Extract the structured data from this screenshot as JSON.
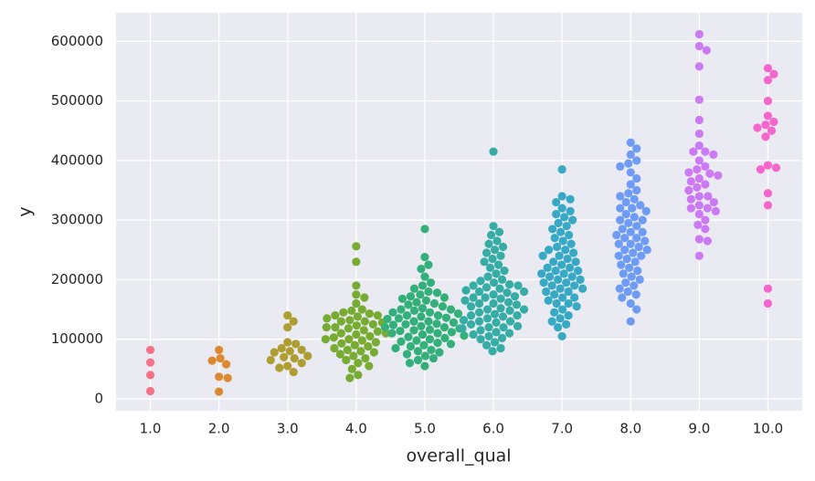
{
  "chart_data": {
    "type": "swarm",
    "xlabel": "overall_qual",
    "ylabel": "y",
    "categories": [
      "1.0",
      "2.0",
      "3.0",
      "4.0",
      "5.0",
      "6.0",
      "7.0",
      "8.0",
      "9.0",
      "10.0"
    ],
    "colors": [
      "#f77189",
      "#dc8932",
      "#ae9d31",
      "#77ab31",
      "#33b07a",
      "#36ada4",
      "#38a9c5",
      "#6e9bf4",
      "#cc7af4",
      "#f565cc"
    ],
    "values": [
      [
        82000,
        61000,
        40000,
        13000
      ],
      [
        82000,
        68000,
        64000,
        58000,
        37000,
        35000,
        12000
      ],
      [
        140000,
        130000,
        120000,
        95000,
        92000,
        85000,
        82000,
        80000,
        78000,
        72000,
        70000,
        68000,
        65000,
        60000,
        55000,
        52000,
        45000
      ],
      [
        256000,
        230000,
        190000,
        175000,
        170000,
        160000,
        150000,
        148000,
        145000,
        143000,
        140000,
        138000,
        135000,
        132000,
        130000,
        128000,
        125000,
        123000,
        120000,
        118000,
        115000,
        113000,
        110000,
        108000,
        105000,
        103000,
        100000,
        98000,
        95000,
        93000,
        90000,
        88000,
        85000,
        82000,
        80000,
        78000,
        75000,
        72000,
        68000,
        65000,
        60000,
        55000,
        50000,
        40000,
        35000,
        120000,
        110000,
        100000,
        130000,
        140000
      ],
      [
        285000,
        238000,
        225000,
        218000,
        205000,
        195000,
        190000,
        185000,
        180000,
        178000,
        175000,
        172000,
        170000,
        168000,
        165000,
        162000,
        160000,
        158000,
        155000,
        152000,
        150000,
        148000,
        145000,
        143000,
        140000,
        138000,
        136000,
        134000,
        132000,
        130000,
        128000,
        126000,
        124000,
        122000,
        120000,
        118000,
        116000,
        114000,
        112000,
        110000,
        108000,
        106000,
        104000,
        102000,
        100000,
        98000,
        96000,
        94000,
        92000,
        90000,
        88000,
        85000,
        82000,
        80000,
        78000,
        75000,
        72000,
        68000,
        65000,
        60000,
        55000,
        140000,
        130000,
        120000,
        110000,
        150000,
        125000,
        135000,
        115000,
        145000
      ],
      [
        415000,
        290000,
        280000,
        275000,
        265000,
        260000,
        255000,
        250000,
        245000,
        240000,
        235000,
        230000,
        225000,
        220000,
        215000,
        210000,
        205000,
        200000,
        198000,
        195000,
        192000,
        190000,
        187000,
        185000,
        182000,
        180000,
        178000,
        175000,
        172000,
        170000,
        168000,
        165000,
        162000,
        160000,
        158000,
        155000,
        152000,
        150000,
        148000,
        145000,
        142000,
        140000,
        138000,
        135000,
        132000,
        130000,
        128000,
        125000,
        122000,
        120000,
        118000,
        115000,
        112000,
        110000,
        108000,
        105000,
        102000,
        100000,
        95000,
        90000,
        85000,
        80000,
        160000,
        150000,
        140000,
        170000,
        180000,
        130000,
        120000,
        190000
      ],
      [
        385000,
        340000,
        335000,
        330000,
        320000,
        315000,
        310000,
        305000,
        300000,
        295000,
        290000,
        285000,
        280000,
        275000,
        270000,
        265000,
        260000,
        255000,
        250000,
        245000,
        240000,
        235000,
        230000,
        225000,
        220000,
        215000,
        210000,
        205000,
        200000,
        195000,
        190000,
        185000,
        180000,
        175000,
        170000,
        165000,
        160000,
        155000,
        150000,
        145000,
        140000,
        135000,
        130000,
        125000,
        120000,
        105000,
        200000,
        210000,
        220000,
        190000,
        180000,
        230000,
        170000,
        240000,
        160000,
        250000,
        205000,
        215000,
        195000,
        185000
      ],
      [
        430000,
        420000,
        410000,
        400000,
        395000,
        390000,
        380000,
        370000,
        360000,
        350000,
        345000,
        340000,
        335000,
        330000,
        325000,
        320000,
        315000,
        310000,
        305000,
        300000,
        295000,
        290000,
        285000,
        280000,
        275000,
        270000,
        265000,
        260000,
        255000,
        250000,
        245000,
        240000,
        235000,
        230000,
        225000,
        220000,
        215000,
        210000,
        205000,
        200000,
        195000,
        190000,
        185000,
        180000,
        175000,
        170000,
        160000,
        150000,
        130000,
        300000,
        280000,
        260000,
        240000,
        320000,
        270000,
        250000
      ],
      [
        612000,
        592000,
        585000,
        558000,
        502000,
        468000,
        445000,
        425000,
        415000,
        410000,
        400000,
        390000,
        385000,
        380000,
        375000,
        370000,
        365000,
        360000,
        355000,
        350000,
        340000,
        335000,
        330000,
        325000,
        320000,
        315000,
        310000,
        300000,
        292000,
        285000,
        268000,
        265000,
        240000,
        415000,
        378000,
        340000,
        320000
      ],
      [
        555000,
        545000,
        535000,
        500000,
        475000,
        465000,
        460000,
        455000,
        450000,
        440000,
        392000,
        388000,
        385000,
        345000,
        325000,
        185000,
        160000
      ]
    ],
    "ylim": [
      -20000,
      648000
    ],
    "yticks": [
      0,
      100000,
      200000,
      300000,
      400000,
      500000,
      600000
    ],
    "grid": true
  }
}
